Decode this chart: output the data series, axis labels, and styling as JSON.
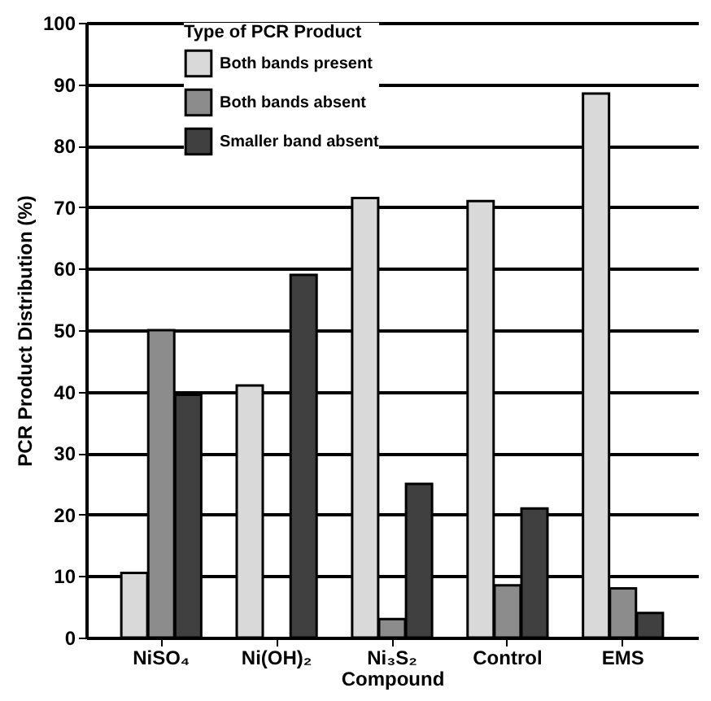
{
  "chart_data": {
    "type": "bar",
    "xlabel": "Compound",
    "ylabel": "PCR Product Distribution (%)",
    "legend_title": "Type of PCR Product",
    "categories": [
      "NiSO₄",
      "Ni(OH)₂",
      "Ni₃S₂",
      "Control",
      "EMS"
    ],
    "series": [
      {
        "name": "Both bands present",
        "color": "#d9d9d9",
        "values": [
          10.5,
          41,
          71.5,
          71,
          88.5
        ]
      },
      {
        "name": "Both bands absent",
        "color": "#8c8c8c",
        "values": [
          50,
          null,
          3,
          8.5,
          8
        ]
      },
      {
        "name": "Smaller band absent",
        "color": "#404040",
        "values": [
          39.5,
          59,
          25,
          21,
          4
        ]
      }
    ],
    "ylim": [
      0,
      100
    ],
    "yticks": [
      0,
      10,
      20,
      30,
      40,
      50,
      60,
      70,
      80,
      90,
      100
    ],
    "grid": "y",
    "legend": "top"
  }
}
